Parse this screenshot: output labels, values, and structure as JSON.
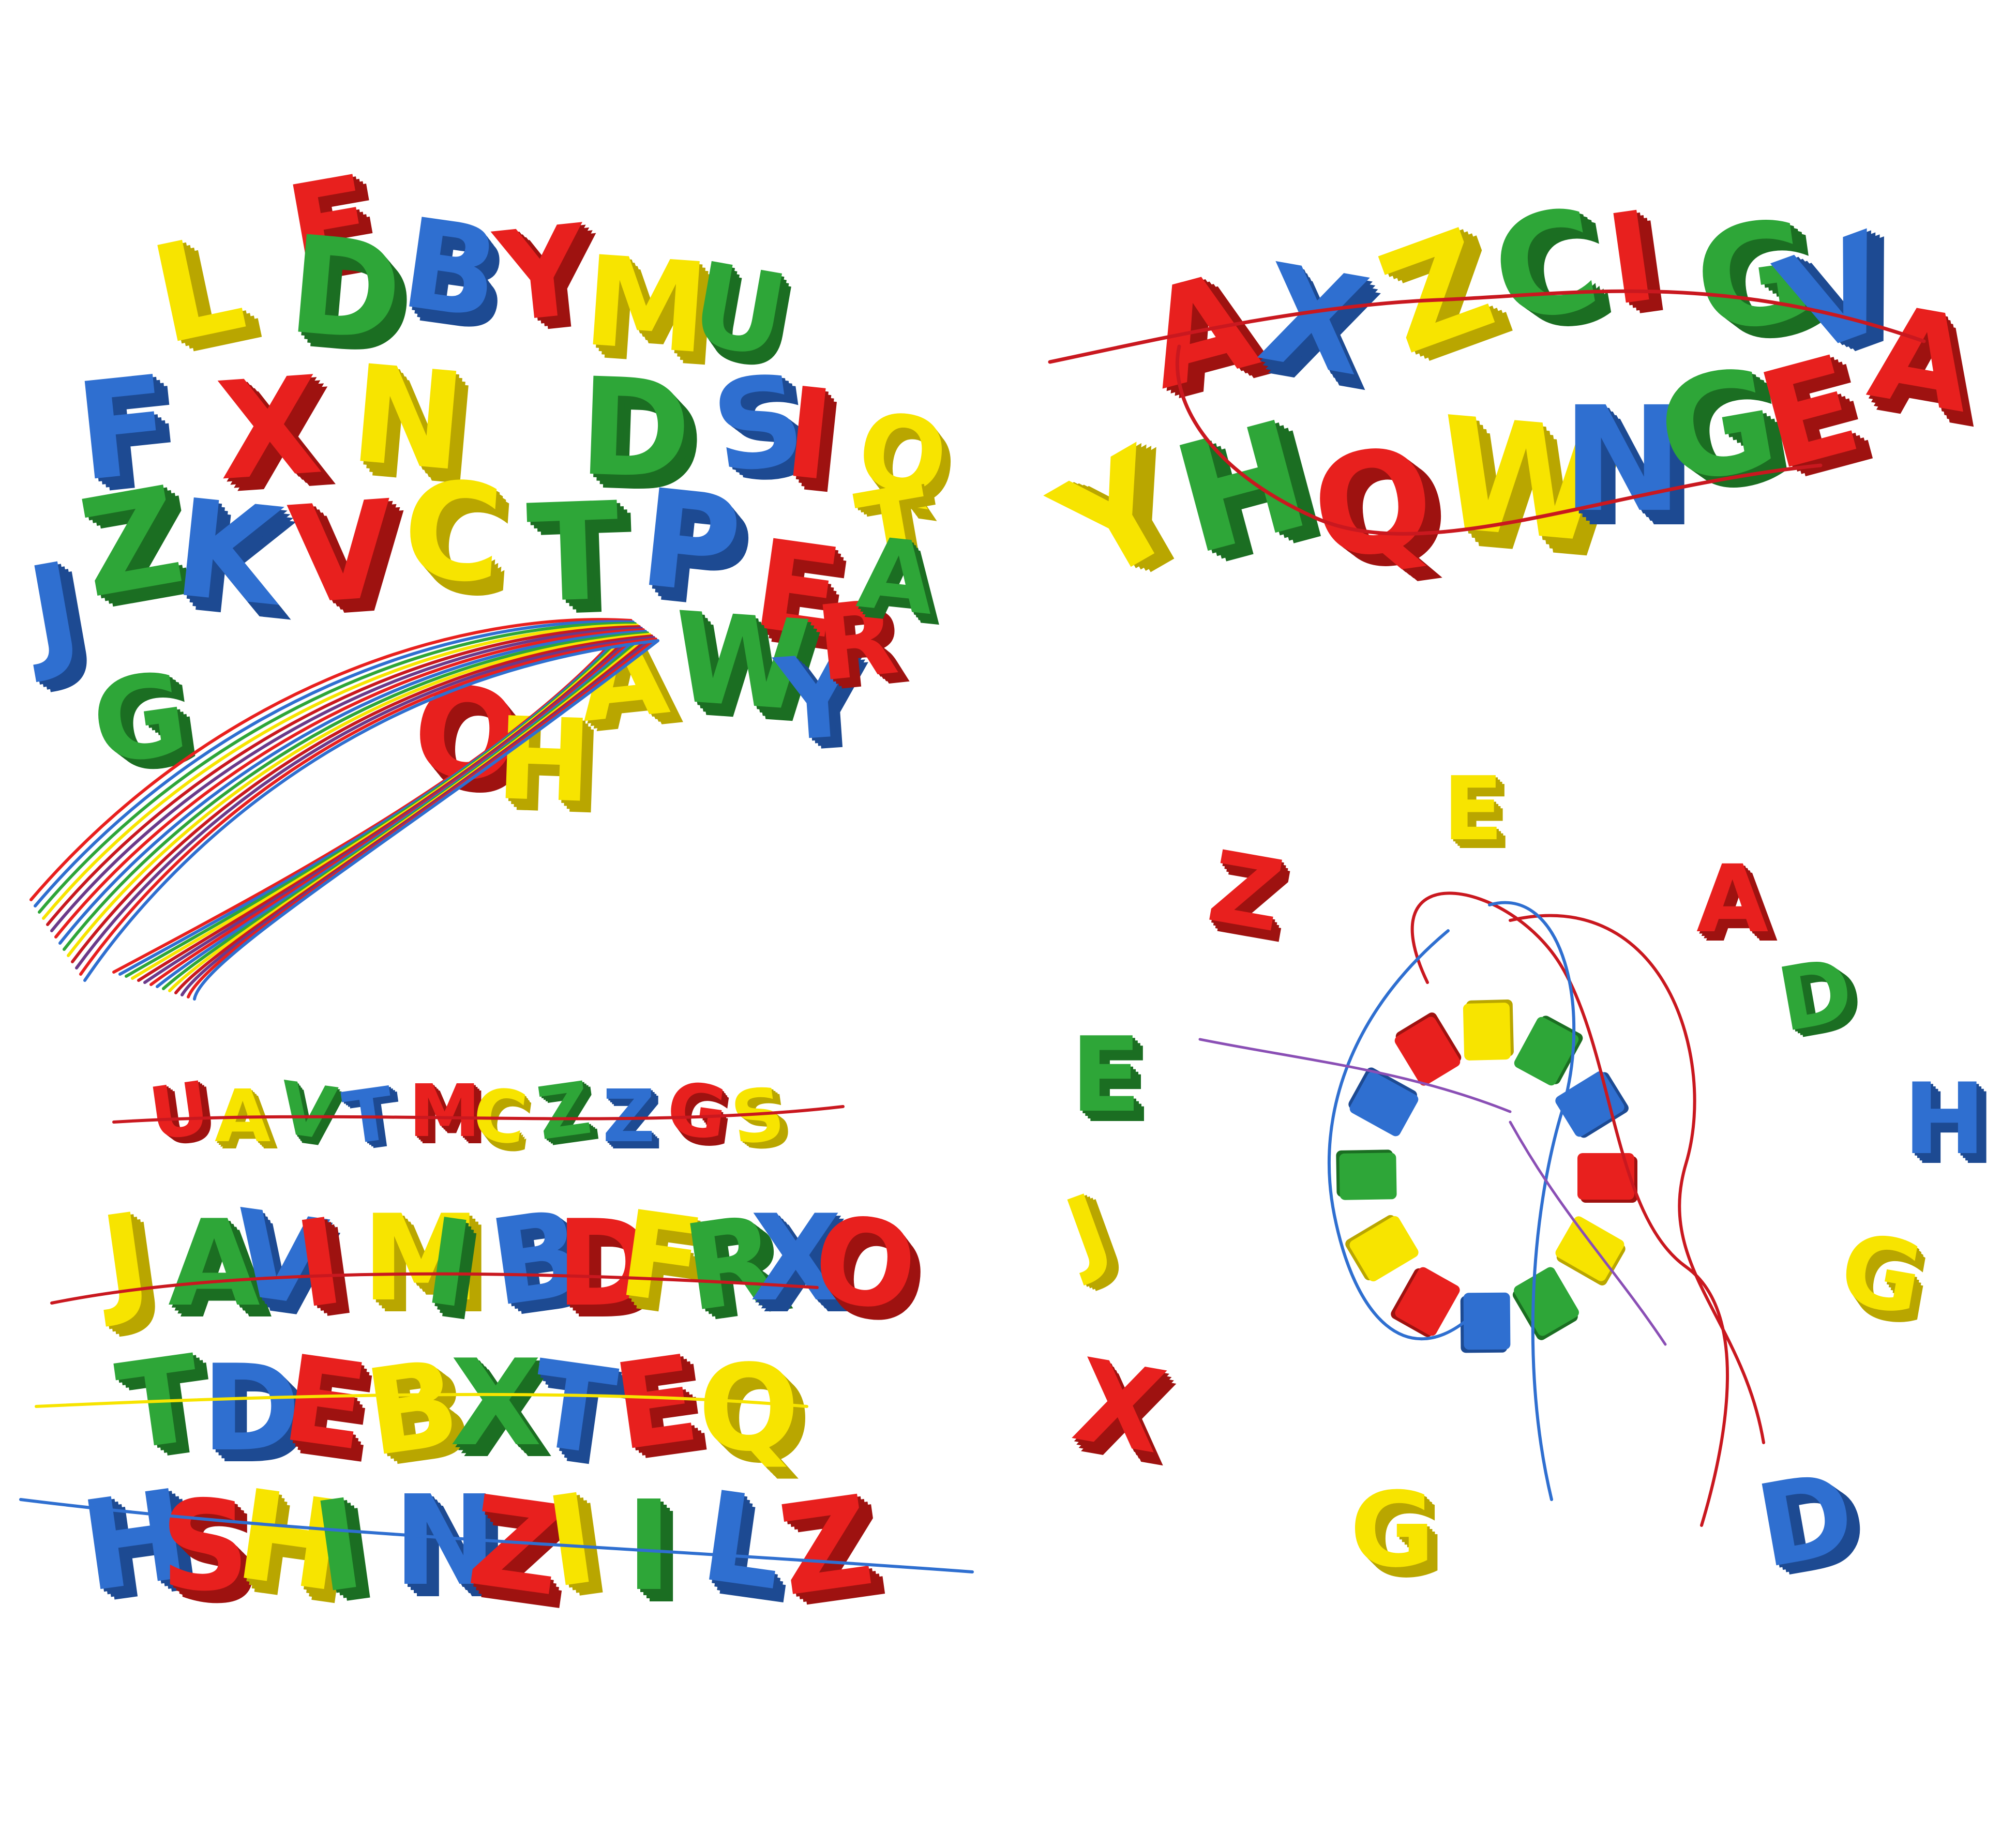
{
  "image": {
    "description_colors": {
      "red": "#e8201e",
      "yellow": "#f7e400",
      "green": "#2ea638",
      "blue": "#2f6fd0"
    }
  },
  "panels": {
    "pile": {
      "letters": [
        "E",
        "L",
        "D",
        "B",
        "Y",
        "M",
        "U",
        "F",
        "X",
        "N",
        "D",
        "S",
        "I",
        "Q",
        "Z",
        "K",
        "V",
        "C",
        "T",
        "P",
        "E",
        "A",
        "W",
        "Y",
        "O",
        "H",
        "G",
        "J",
        "R",
        "T",
        "A"
      ]
    },
    "chain_top_right": {
      "letters": [
        "A",
        "X",
        "Z",
        "C",
        "I",
        "G",
        "V",
        "A",
        "Y",
        "H",
        "Q",
        "W",
        "N",
        "G",
        "E"
      ]
    },
    "strands_bottom_left": {
      "row1": [
        "U",
        "A",
        "V",
        "T",
        "M",
        "C",
        "Z",
        "Z",
        "G",
        "S"
      ],
      "row2": [
        "J",
        "A",
        "V",
        "I",
        "M",
        "I",
        "B",
        "D",
        "F",
        "R",
        "X",
        "O"
      ],
      "row3": [
        "T",
        "D",
        "E",
        "B",
        "X",
        "T",
        "E",
        "Q"
      ],
      "row4": [
        "H",
        "S",
        "H",
        "I",
        "N",
        "Z",
        "I",
        "I",
        "L",
        "Z"
      ]
    },
    "loose_bottom_right": {
      "letters": [
        "E",
        "Z",
        "A",
        "D",
        "E",
        "H",
        "J",
        "G",
        "X",
        "G",
        "D"
      ]
    }
  }
}
